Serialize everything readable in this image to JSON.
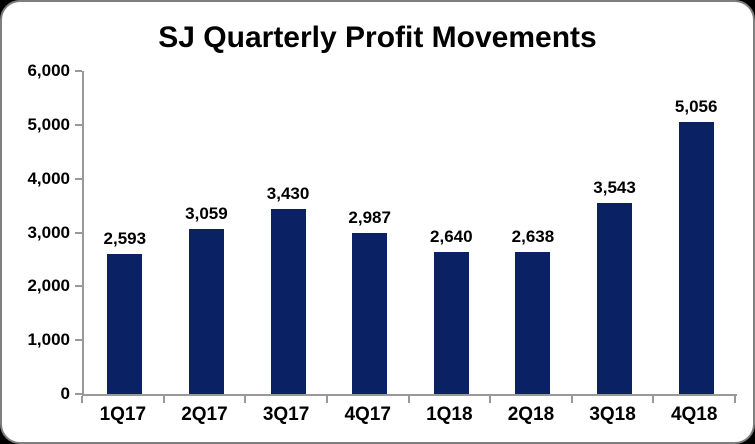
{
  "chart_data": {
    "type": "bar",
    "title": "SJ Quarterly Profit Movements",
    "categories": [
      "1Q17",
      "2Q17",
      "3Q17",
      "4Q17",
      "1Q18",
      "2Q18",
      "3Q18",
      "4Q18"
    ],
    "values": [
      2593,
      3059,
      3430,
      2987,
      2640,
      2638,
      3543,
      5056
    ],
    "value_labels": [
      "2,593",
      "3,059",
      "3,430",
      "2,987",
      "2,640",
      "2,638",
      "3,543",
      "5,056"
    ],
    "xlabel": "",
    "ylabel": "",
    "ylim": [
      0,
      6000
    ],
    "ytick_step": 1000,
    "ytick_labels": [
      "0",
      "1,000",
      "2,000",
      "3,000",
      "4,000",
      "5,000",
      "6,000"
    ],
    "grid": false,
    "legend_position": "none",
    "colors": {
      "bar_fill": "#0A2163",
      "axis_line": "#999999",
      "text": "#000000",
      "card_background": "#FFFFFF",
      "card_border": "#7F7F7F",
      "outside_background": "#000000"
    }
  }
}
